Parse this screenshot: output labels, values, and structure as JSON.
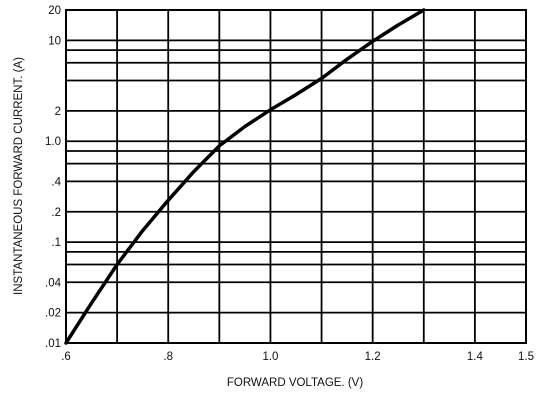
{
  "chart_data": {
    "type": "line",
    "title": "",
    "xlabel": "FORWARD VOLTAGE. (V)",
    "ylabel": "INSTANTANEOUS FORWARD CURRENT. (A)",
    "x_scale": "linear",
    "y_scale": "log",
    "xlim": [
      0.6,
      1.5
    ],
    "ylim": [
      0.01,
      20
    ],
    "grid": true,
    "x_ticks": [
      0.6,
      0.7,
      0.8,
      0.9,
      1.0,
      1.1,
      1.2,
      1.3,
      1.4,
      1.5
    ],
    "x_tick_labels": [
      {
        "value": 0.6,
        "label": ".6"
      },
      {
        "value": 0.8,
        "label": ".8"
      },
      {
        "value": 1.0,
        "label": "1.0"
      },
      {
        "value": 1.2,
        "label": "1.2"
      },
      {
        "value": 1.4,
        "label": "1.4"
      },
      {
        "value": 1.5,
        "label": "1.5"
      }
    ],
    "y_gridlines": [
      0.01,
      0.02,
      0.04,
      0.06,
      0.08,
      0.1,
      0.2,
      0.4,
      0.6,
      0.8,
      1.0,
      2,
      4,
      6,
      8,
      10,
      20
    ],
    "y_tick_labels": [
      {
        "value": 0.01,
        "label": ".01"
      },
      {
        "value": 0.02,
        "label": ".02"
      },
      {
        "value": 0.04,
        "label": ".04"
      },
      {
        "value": 0.1,
        "label": ".1"
      },
      {
        "value": 0.2,
        "label": ".2"
      },
      {
        "value": 0.4,
        "label": ".4"
      },
      {
        "value": 1.0,
        "label": "1.0"
      },
      {
        "value": 2,
        "label": "2"
      },
      {
        "value": 10,
        "label": "10"
      },
      {
        "value": 20,
        "label": "20"
      }
    ],
    "series": [
      {
        "x": [
          0.6,
          0.65,
          0.7,
          0.75,
          0.8,
          0.85,
          0.9,
          0.95,
          1.0,
          1.05,
          1.1,
          1.15,
          1.2,
          1.25,
          1.3
        ],
        "values": [
          0.01,
          0.025,
          0.06,
          0.13,
          0.26,
          0.5,
          0.9,
          1.4,
          2.05,
          2.9,
          4.2,
          6.5,
          9.8,
          14.2,
          20
        ]
      }
    ]
  }
}
